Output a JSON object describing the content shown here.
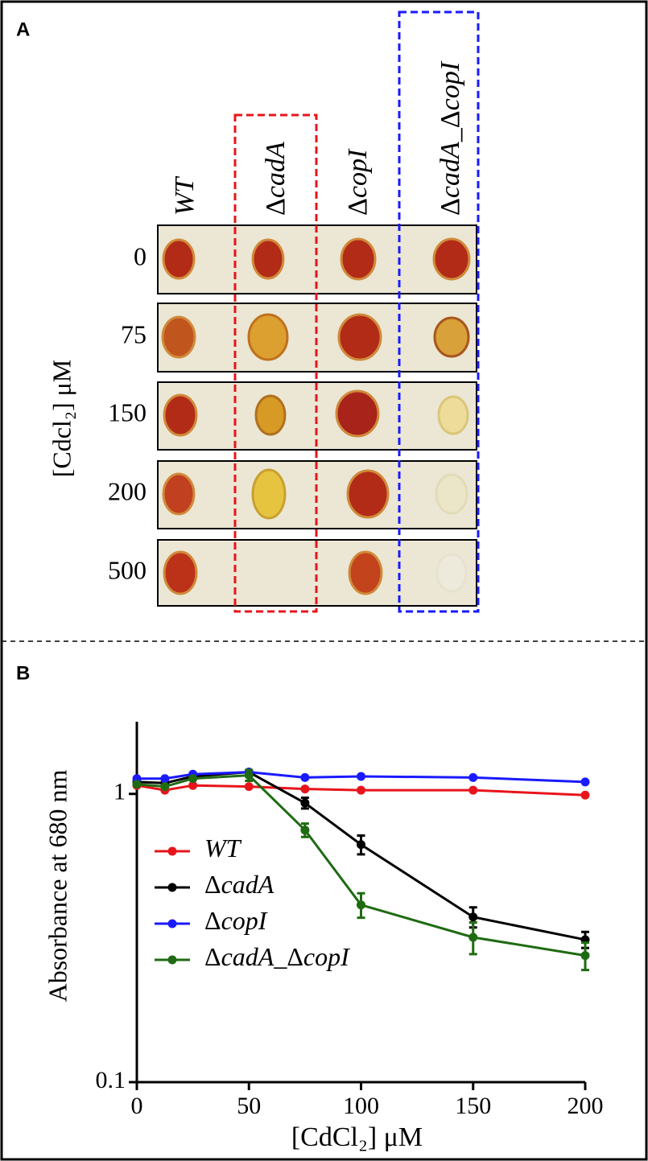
{
  "panel_a": {
    "panel_label": "A",
    "columns": [
      "WT",
      "ΔcadA",
      "ΔcopI",
      "ΔcadA_ΔcopI"
    ],
    "rows": [
      "0",
      "75",
      "150",
      "200",
      "500"
    ],
    "ylabel": "[Cdcl₂] μM"
  },
  "chart_data": {
    "type": "line",
    "panel_label": "B",
    "xlabel": "[CdCl₂] μM",
    "ylabel": "Absorbance at 680 nm",
    "x": [
      0,
      12.5,
      25,
      50,
      75,
      100,
      150,
      200
    ],
    "xlim": [
      0,
      200
    ],
    "xticks": [
      0,
      50,
      100,
      150,
      200
    ],
    "ylim": [
      0.1,
      1.78
    ],
    "yticks": [
      0.1,
      1
    ],
    "yscale": "log",
    "legend": "lower left",
    "series": [
      {
        "name": "WT",
        "color": "#e8141b",
        "values": [
          1.07,
          1.03,
          1.07,
          1.06,
          1.04,
          1.03,
          1.03,
          0.99
        ]
      },
      {
        "name": "ΔcadA",
        "color": "#000000",
        "values": [
          1.1,
          1.09,
          1.15,
          1.19,
          0.93,
          0.667,
          0.374,
          0.312
        ],
        "errors": [
          0,
          0,
          0,
          0,
          0.04,
          0.05,
          0.03,
          0.02
        ]
      },
      {
        "name": "ΔcopI",
        "color": "#1a1aff",
        "values": [
          1.13,
          1.13,
          1.17,
          1.19,
          1.14,
          1.15,
          1.14,
          1.1
        ]
      },
      {
        "name": "ΔcadA_ΔcopI",
        "color": "#1f6b12",
        "values": [
          1.08,
          1.06,
          1.13,
          1.16,
          0.749,
          0.412,
          0.318,
          0.275
        ],
        "errors": [
          0,
          0,
          0,
          0.05,
          0.04,
          0.04,
          0.04,
          0.03
        ]
      }
    ]
  }
}
